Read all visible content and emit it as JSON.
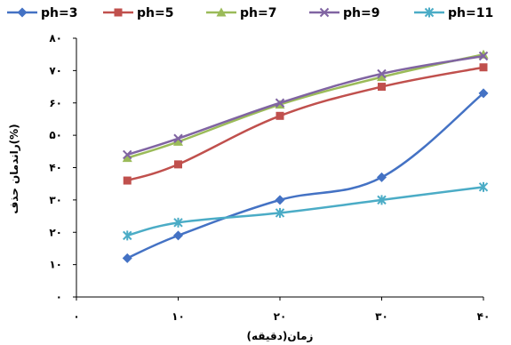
{
  "chart_data": {
    "type": "line",
    "xlabel": "زمان(دقیقه)",
    "ylabel": "راندمان حذف(%)",
    "xlim": [
      0,
      40
    ],
    "ylim": [
      0,
      80
    ],
    "x_ticks": [
      0,
      10,
      20,
      30,
      40
    ],
    "y_ticks": [
      0,
      10,
      20,
      30,
      40,
      50,
      60,
      70,
      80
    ],
    "x_tick_labels": [
      "۰",
      "۱۰",
      "۲۰",
      "۳۰",
      "۴۰"
    ],
    "y_tick_labels": [
      "۰",
      "۱۰",
      "۲۰",
      "۳۰",
      "۴۰",
      "۵۰",
      "۶۰",
      "۷۰",
      "۸۰"
    ],
    "legend_position": "top",
    "x": [
      5,
      10,
      20,
      30,
      40
    ],
    "series": [
      {
        "name": "ph=3",
        "color": "#4472C4",
        "marker": "diamond",
        "values": [
          12,
          19,
          30,
          37,
          63
        ]
      },
      {
        "name": "ph=5",
        "color": "#C0504D",
        "marker": "square",
        "values": [
          36,
          41,
          56,
          65,
          71
        ]
      },
      {
        "name": "ph=7",
        "color": "#9BBB59",
        "marker": "triangle",
        "values": [
          43,
          48,
          59.5,
          68,
          75
        ]
      },
      {
        "name": "ph=9",
        "color": "#8064A2",
        "marker": "x",
        "values": [
          44,
          49,
          60,
          69,
          74.5
        ]
      },
      {
        "name": "ph=11",
        "color": "#4BACC6",
        "marker": "star",
        "values": [
          19,
          23,
          26,
          30,
          34
        ]
      }
    ]
  }
}
